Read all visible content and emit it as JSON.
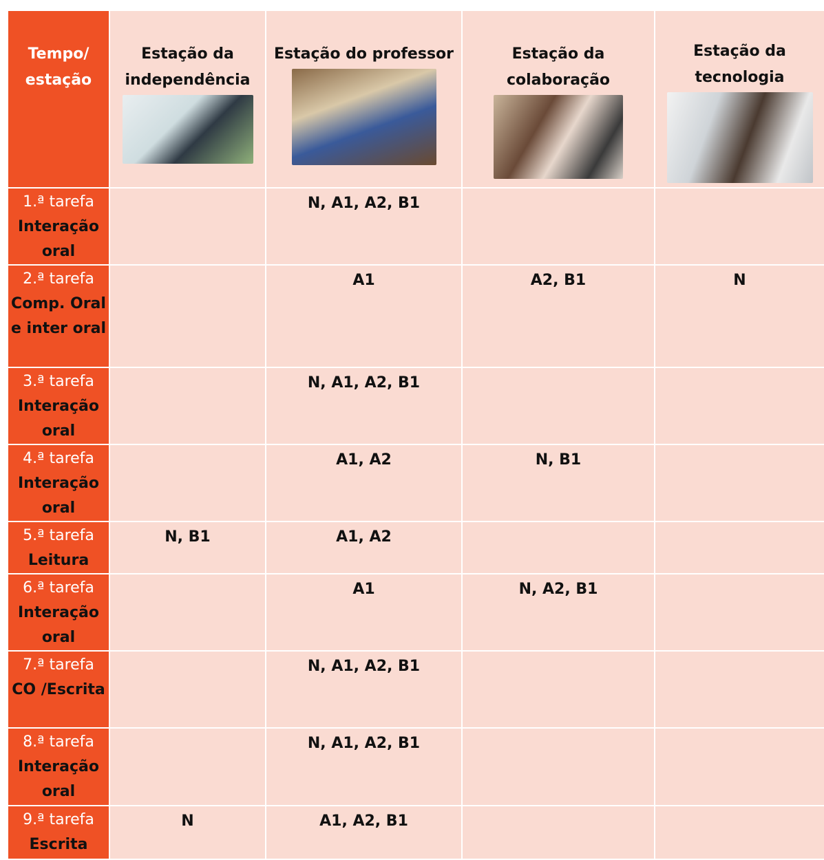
{
  "table": {
    "header": [
      "Tempo/ estação",
      "Estação da independência",
      "Estação do professor",
      "Estação da colaboração",
      "Estação da tecnologia"
    ],
    "rows": [
      {
        "task": "1.ª tarefa",
        "skill": "Interação oral",
        "cells": [
          null,
          "N, A1, A2, B1",
          null,
          null
        ]
      },
      {
        "task": "2.ª tarefa",
        "skill": "Comp. Oral e inter oral",
        "cells": [
          null,
          "A1",
          "A2, B1",
          "N"
        ]
      },
      {
        "task": "3.ª tarefa",
        "skill": "Interação oral",
        "cells": [
          null,
          "N, A1, A2, B1",
          null,
          null
        ]
      },
      {
        "task": "4.ª tarefa",
        "skill": "Interação oral",
        "cells": [
          null,
          "A1, A2",
          "N, B1",
          null
        ]
      },
      {
        "task": "5.ª tarefa",
        "skill": "Leitura",
        "cells": [
          "N, B1",
          "A1, A2",
          null,
          null
        ]
      },
      {
        "task": "6.ª tarefa",
        "skill": "Interação oral",
        "cells": [
          null,
          "A1",
          "N, A2, B1",
          null
        ]
      },
      {
        "task": "7.ª tarefa",
        "skill": "CO /Escrita",
        "cells": [
          null,
          "N, A1, A2, B1",
          null,
          null
        ]
      },
      {
        "task": "8.ª tarefa",
        "skill": "Interação oral",
        "cells": [
          null,
          "N, A1, A2, B1",
          null,
          null
        ]
      },
      {
        "task": "9.ª tarefa",
        "skill": "Escrita",
        "cells": [
          "N",
          "A1, A2, B1",
          null,
          null
        ]
      }
    ]
  }
}
